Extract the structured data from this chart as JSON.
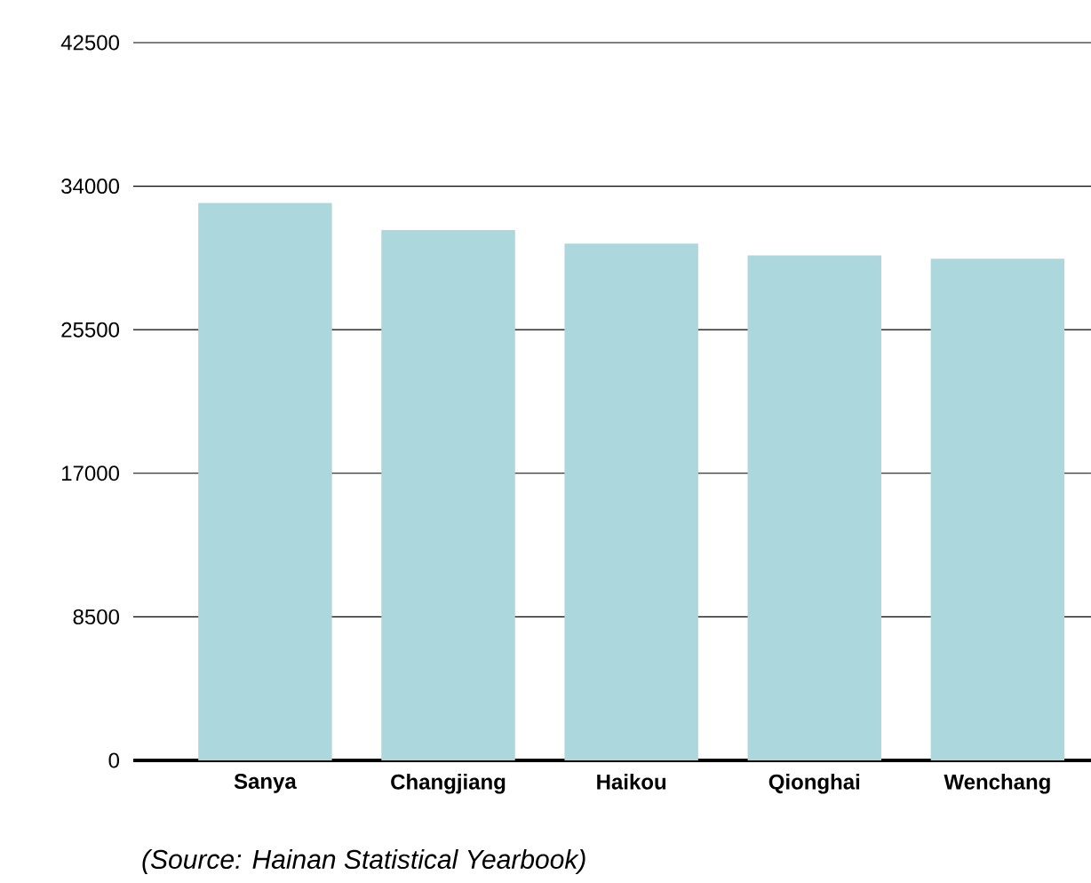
{
  "chart_data": {
    "type": "bar",
    "categories": [
      "Sanya",
      "Changjiang",
      "Haikou",
      "Qionghai",
      "Wenchang"
    ],
    "values": [
      33000,
      31400,
      30600,
      29900,
      29700
    ],
    "color": "#acd7dc",
    "ylim": [
      0,
      42500
    ],
    "yticks": [
      0,
      8500,
      17000,
      25500,
      34000,
      42500
    ],
    "grid": "y",
    "annotations": [
      "(Source: Hainan Statistical Yearbook)"
    ]
  }
}
